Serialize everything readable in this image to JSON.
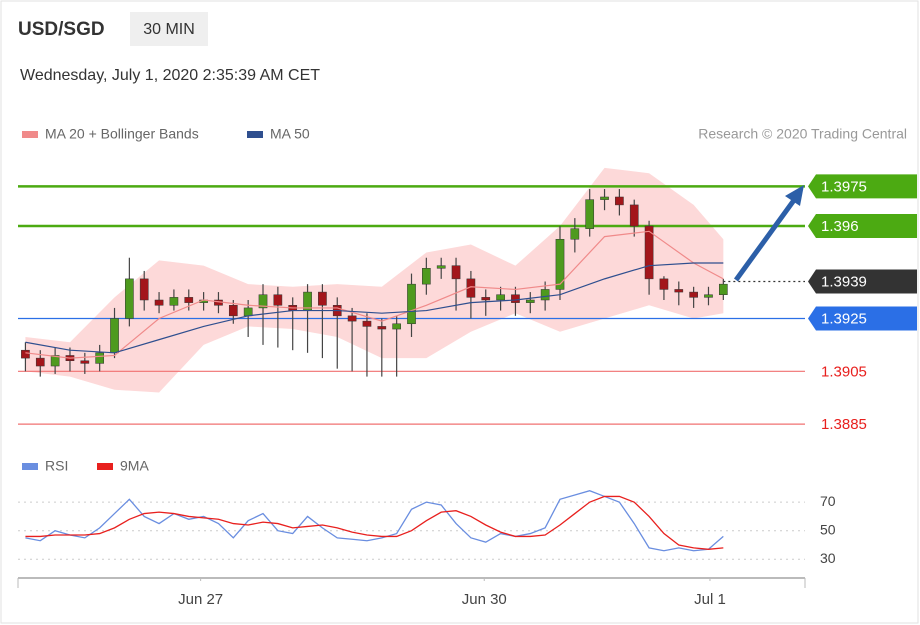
{
  "header": {
    "symbol": "USD/SGD",
    "interval": "30 MIN",
    "timestamp": "Wednesday, July 1, 2020 2:35:39 AM CET",
    "credit": "Research © 2020 Trading Central"
  },
  "chart_data": [
    {
      "type": "candlestick",
      "x": [
        0,
        1,
        2,
        3,
        4,
        5,
        6,
        7,
        8,
        9,
        10,
        11,
        12,
        13,
        14,
        15,
        16,
        17,
        18,
        19,
        20,
        21,
        22,
        23,
        24,
        25,
        26,
        27,
        28,
        29,
        30,
        31,
        32,
        33,
        34,
        35,
        36,
        37,
        38,
        39,
        40,
        41,
        42,
        43,
        44,
        45,
        46,
        47
      ],
      "open": [
        1.3913,
        1.391,
        1.3907,
        1.3911,
        1.3909,
        1.3908,
        1.3912,
        1.3925,
        1.394,
        1.3932,
        1.393,
        1.3933,
        1.3931,
        1.3932,
        1.393,
        1.3926,
        1.3929,
        1.3934,
        1.393,
        1.3928,
        1.3935,
        1.393,
        1.3926,
        1.3924,
        1.3922,
        1.3921,
        1.3923,
        1.3938,
        1.3944,
        1.3945,
        1.394,
        1.3933,
        1.3932,
        1.3934,
        1.3931,
        1.3932,
        1.3936,
        1.3955,
        1.3959,
        1.397,
        1.3971,
        1.3968,
        1.396,
        1.394,
        1.3936,
        1.3935,
        1.3933,
        1.3934
      ],
      "high": [
        1.3916,
        1.3913,
        1.3914,
        1.3914,
        1.3912,
        1.3915,
        1.3929,
        1.3948,
        1.3943,
        1.3935,
        1.3936,
        1.3936,
        1.3935,
        1.3935,
        1.3932,
        1.3932,
        1.3938,
        1.3937,
        1.3933,
        1.3938,
        1.3938,
        1.3933,
        1.3929,
        1.3927,
        1.3925,
        1.3926,
        1.3942,
        1.3948,
        1.3948,
        1.3948,
        1.3943,
        1.3936,
        1.3937,
        1.3937,
        1.3935,
        1.3939,
        1.396,
        1.3963,
        1.3974,
        1.3974,
        1.3974,
        1.397,
        1.3962,
        1.3941,
        1.3939,
        1.3937,
        1.3937,
        1.394
      ],
      "low": [
        1.3905,
        1.3903,
        1.3904,
        1.3905,
        1.3904,
        1.3905,
        1.391,
        1.3922,
        1.3928,
        1.3927,
        1.3928,
        1.3928,
        1.3928,
        1.3927,
        1.3923,
        1.3918,
        1.3915,
        1.3914,
        1.3913,
        1.3912,
        1.391,
        1.3906,
        1.3905,
        1.3903,
        1.3903,
        1.3903,
        1.3918,
        1.3934,
        1.394,
        1.3928,
        1.3925,
        1.3926,
        1.3928,
        1.3926,
        1.3927,
        1.3928,
        1.3932,
        1.395,
        1.3956,
        1.3966,
        1.3964,
        1.3956,
        1.3934,
        1.3932,
        1.393,
        1.3929,
        1.393,
        1.3932
      ],
      "close": [
        1.391,
        1.3907,
        1.3911,
        1.3909,
        1.3908,
        1.3912,
        1.3925,
        1.394,
        1.3932,
        1.393,
        1.3933,
        1.3931,
        1.3932,
        1.393,
        1.3926,
        1.3929,
        1.3934,
        1.393,
        1.3928,
        1.3935,
        1.393,
        1.3926,
        1.3924,
        1.3922,
        1.3921,
        1.3923,
        1.3938,
        1.3944,
        1.3945,
        1.394,
        1.3933,
        1.3932,
        1.3934,
        1.3931,
        1.3932,
        1.3936,
        1.3955,
        1.3959,
        1.397,
        1.3971,
        1.3968,
        1.396,
        1.394,
        1.3936,
        1.3935,
        1.3933,
        1.3934,
        1.3938
      ],
      "up_color": "#4e9a1e",
      "down_color": "#a3161b",
      "xlim": [
        -0.5,
        52.5
      ],
      "ylim": [
        1.3879,
        1.3985
      ],
      "series": [
        {
          "name": "MA 20 + Bollinger Bands",
          "color": "#f08a8a",
          "band_color": "#fdd9d9",
          "x": [
            0,
            3,
            6,
            9,
            12,
            15,
            18,
            21,
            24,
            27,
            30,
            33,
            36,
            39,
            42,
            45,
            47
          ],
          "values": [
            1.3912,
            1.391,
            1.3911,
            1.3925,
            1.3932,
            1.393,
            1.3929,
            1.3929,
            1.3924,
            1.393,
            1.3937,
            1.3936,
            1.3938,
            1.3956,
            1.3958,
            1.3946,
            1.394
          ],
          "upper": [
            1.3918,
            1.3916,
            1.3933,
            1.3947,
            1.3945,
            1.3938,
            1.3937,
            1.3938,
            1.3937,
            1.395,
            1.3953,
            1.3945,
            1.396,
            1.3982,
            1.398,
            1.3968,
            1.3955
          ],
          "lower": [
            1.3905,
            1.3903,
            1.3898,
            1.3897,
            1.3915,
            1.3922,
            1.3921,
            1.3918,
            1.391,
            1.391,
            1.392,
            1.3927,
            1.392,
            1.3925,
            1.393,
            1.3925,
            1.3927
          ]
        },
        {
          "name": "MA 50",
          "color": "#2f4f8f",
          "x": [
            0,
            3,
            6,
            9,
            12,
            15,
            18,
            21,
            24,
            27,
            30,
            33,
            36,
            39,
            42,
            45,
            47
          ],
          "values": [
            1.3916,
            1.3913,
            1.3912,
            1.3917,
            1.3922,
            1.3926,
            1.3928,
            1.3928,
            1.3927,
            1.3928,
            1.3931,
            1.3932,
            1.3934,
            1.394,
            1.3945,
            1.3946,
            1.3946
          ]
        }
      ],
      "levels": [
        {
          "value": 1.3975,
          "color": "#4caa12",
          "line": "solid",
          "box": true
        },
        {
          "value": 1.396,
          "color": "#4caa12",
          "line": "solid",
          "box": true
        },
        {
          "value": 1.3939,
          "color": "#333333",
          "line": "dotted",
          "box": true
        },
        {
          "value": 1.3925,
          "color": "#2b6fe6",
          "line": "solid",
          "box": true
        },
        {
          "value": 1.3905,
          "color": "#f07070",
          "line": "solid",
          "box": false
        },
        {
          "value": 1.3885,
          "color": "#f07070",
          "line": "solid",
          "box": false
        }
      ]
    },
    {
      "type": "line",
      "x": [
        0,
        1,
        2,
        3,
        4,
        5,
        6,
        7,
        8,
        9,
        10,
        11,
        12,
        13,
        14,
        15,
        16,
        17,
        18,
        19,
        20,
        21,
        22,
        23,
        24,
        25,
        26,
        27,
        28,
        29,
        30,
        31,
        32,
        33,
        34,
        35,
        36,
        37,
        38,
        39,
        40,
        41,
        42,
        43,
        44,
        45,
        46,
        47
      ],
      "xlim": [
        -0.5,
        52.5
      ],
      "ylim": [
        19,
        82
      ],
      "yticks": [
        30,
        50,
        70
      ],
      "grid": true,
      "xticks": [
        {
          "value": 11.8,
          "label": "Jun 27"
        },
        {
          "value": 30.9,
          "label": "Jun 30"
        },
        {
          "value": 46.1,
          "label": "Jul 1"
        }
      ],
      "series": [
        {
          "name": "RSI",
          "color": "#6a8ee0",
          "values": [
            45,
            43,
            50,
            47,
            45,
            52,
            62,
            72,
            60,
            55,
            62,
            58,
            60,
            55,
            45,
            57,
            62,
            50,
            48,
            60,
            52,
            45,
            44,
            43,
            45,
            48,
            65,
            70,
            68,
            55,
            45,
            42,
            48,
            46,
            48,
            52,
            72,
            75,
            78,
            74,
            70,
            55,
            38,
            36,
            38,
            36,
            37,
            46
          ]
        },
        {
          "name": "9MA",
          "color": "#e8201e",
          "values": [
            46,
            46,
            47,
            47,
            47,
            48,
            52,
            58,
            62,
            63,
            62,
            60,
            59,
            58,
            55,
            54,
            56,
            55,
            52,
            53,
            54,
            52,
            49,
            47,
            46,
            46,
            50,
            57,
            63,
            64,
            60,
            54,
            49,
            46,
            46,
            47,
            54,
            62,
            70,
            74,
            74,
            70,
            60,
            48,
            40,
            38,
            37,
            38
          ]
        }
      ]
    }
  ]
}
